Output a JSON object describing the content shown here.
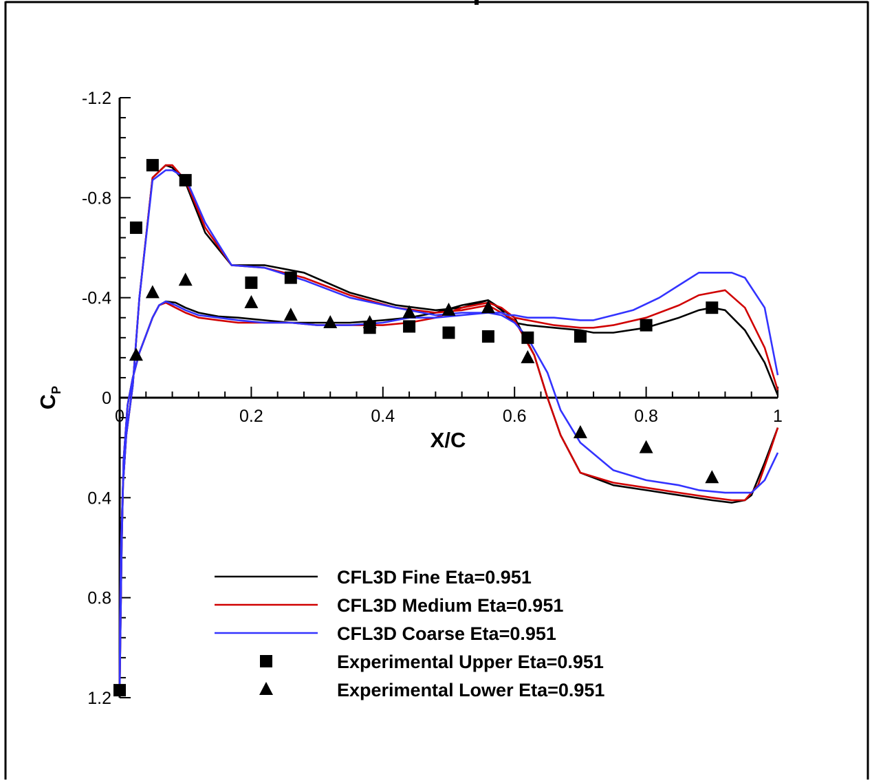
{
  "chart_data": {
    "type": "line",
    "xlabel": "X/C",
    "ylabel": "C",
    "ylabel_sub": "P",
    "xlim": [
      0,
      1
    ],
    "ylim_top": -1.2,
    "ylim_bottom": 1.2,
    "y_axis_inverted": true,
    "grid": false,
    "legend_position": "lower-center",
    "x_ticks": [
      {
        "value": 0,
        "label": "0"
      },
      {
        "value": 0.2,
        "label": "0.2"
      },
      {
        "value": 0.4,
        "label": "0.4"
      },
      {
        "value": 0.6,
        "label": "0.6"
      },
      {
        "value": 0.8,
        "label": "0.8"
      },
      {
        "value": 1,
        "label": "1"
      }
    ],
    "y_ticks": [
      {
        "value": -1.2,
        "label": "-1.2"
      },
      {
        "value": -0.8,
        "label": "-0.8"
      },
      {
        "value": -0.4,
        "label": "-0.4"
      },
      {
        "value": 0,
        "label": "0"
      },
      {
        "value": 0.4,
        "label": "0.4"
      },
      {
        "value": 0.8,
        "label": "0.8"
      },
      {
        "value": 1.2,
        "label": "1.2"
      }
    ],
    "series": [
      {
        "name": "CFL3D Fine Eta=0.951",
        "kind": "line",
        "color": "#000000",
        "x": [
          1.0,
          0.98,
          0.95,
          0.92,
          0.9,
          0.88,
          0.85,
          0.8,
          0.75,
          0.72,
          0.7,
          0.66,
          0.62,
          0.6,
          0.59,
          0.58,
          0.56,
          0.52,
          0.48,
          0.44,
          0.4,
          0.35,
          0.3,
          0.26,
          0.22,
          0.18,
          0.15,
          0.12,
          0.1,
          0.085,
          0.07,
          0.06,
          0.05,
          0.04,
          0.03,
          0.02,
          0.012,
          0.006,
          0.003,
          0.0,
          0.0005,
          0.002,
          0.005,
          0.01,
          0.02,
          0.03,
          0.05,
          0.07,
          0.08,
          0.1,
          0.13,
          0.17,
          0.22,
          0.28,
          0.35,
          0.42,
          0.48,
          0.52,
          0.56,
          0.6,
          0.63,
          0.65,
          0.67,
          0.7,
          0.75,
          0.8,
          0.85,
          0.9,
          0.93,
          0.95,
          0.96,
          0.98,
          1.0
        ],
        "y": [
          -0.01,
          -0.14,
          -0.27,
          -0.35,
          -0.36,
          -0.35,
          -0.32,
          -0.28,
          -0.26,
          -0.26,
          -0.27,
          -0.28,
          -0.29,
          -0.3,
          -0.32,
          -0.35,
          -0.39,
          -0.37,
          -0.34,
          -0.32,
          -0.31,
          -0.3,
          -0.3,
          -0.3,
          -0.31,
          -0.32,
          -0.325,
          -0.34,
          -0.36,
          -0.38,
          -0.385,
          -0.37,
          -0.32,
          -0.25,
          -0.18,
          -0.08,
          0.03,
          0.25,
          0.6,
          1.17,
          0.9,
          0.6,
          0.35,
          0.15,
          -0.05,
          -0.4,
          -0.88,
          -0.93,
          -0.92,
          -0.86,
          -0.66,
          -0.53,
          -0.53,
          -0.5,
          -0.42,
          -0.37,
          -0.35,
          -0.36,
          -0.39,
          -0.32,
          -0.17,
          0.0,
          0.15,
          0.3,
          0.35,
          0.37,
          0.39,
          0.41,
          0.42,
          0.41,
          0.39,
          0.26,
          0.12
        ]
      },
      {
        "name": "CFL3D Medium Eta=0.951",
        "kind": "line",
        "color": "#d00000",
        "x": [
          1.0,
          0.98,
          0.95,
          0.92,
          0.9,
          0.88,
          0.85,
          0.8,
          0.75,
          0.72,
          0.7,
          0.66,
          0.62,
          0.6,
          0.59,
          0.58,
          0.56,
          0.52,
          0.48,
          0.44,
          0.4,
          0.35,
          0.3,
          0.26,
          0.22,
          0.18,
          0.15,
          0.12,
          0.1,
          0.085,
          0.07,
          0.06,
          0.05,
          0.04,
          0.03,
          0.02,
          0.012,
          0.006,
          0.003,
          0.0,
          0.0005,
          0.002,
          0.005,
          0.01,
          0.02,
          0.03,
          0.05,
          0.07,
          0.08,
          0.1,
          0.13,
          0.17,
          0.22,
          0.28,
          0.35,
          0.42,
          0.48,
          0.52,
          0.56,
          0.6,
          0.63,
          0.65,
          0.67,
          0.7,
          0.75,
          0.8,
          0.85,
          0.9,
          0.93,
          0.95,
          0.97,
          0.99,
          1.0
        ],
        "y": [
          -0.03,
          -0.2,
          -0.36,
          -0.43,
          -0.42,
          -0.41,
          -0.37,
          -0.32,
          -0.29,
          -0.28,
          -0.28,
          -0.29,
          -0.31,
          -0.32,
          -0.34,
          -0.36,
          -0.38,
          -0.36,
          -0.32,
          -0.3,
          -0.29,
          -0.29,
          -0.29,
          -0.3,
          -0.3,
          -0.3,
          -0.31,
          -0.32,
          -0.34,
          -0.36,
          -0.38,
          -0.37,
          -0.32,
          -0.25,
          -0.18,
          -0.08,
          0.03,
          0.25,
          0.6,
          1.17,
          0.9,
          0.6,
          0.35,
          0.15,
          -0.05,
          -0.4,
          -0.88,
          -0.93,
          -0.93,
          -0.87,
          -0.68,
          -0.53,
          -0.52,
          -0.48,
          -0.41,
          -0.36,
          -0.34,
          -0.35,
          -0.37,
          -0.31,
          -0.17,
          0.0,
          0.15,
          0.3,
          0.34,
          0.36,
          0.38,
          0.4,
          0.41,
          0.41,
          0.35,
          0.2,
          0.12
        ]
      },
      {
        "name": "CFL3D Coarse Eta=0.951",
        "kind": "line",
        "color": "#3333ff",
        "x": [
          1.0,
          0.98,
          0.95,
          0.93,
          0.91,
          0.88,
          0.85,
          0.82,
          0.78,
          0.75,
          0.72,
          0.7,
          0.66,
          0.62,
          0.6,
          0.59,
          0.58,
          0.56,
          0.52,
          0.48,
          0.44,
          0.4,
          0.35,
          0.3,
          0.26,
          0.22,
          0.18,
          0.15,
          0.12,
          0.1,
          0.085,
          0.07,
          0.06,
          0.05,
          0.04,
          0.03,
          0.02,
          0.012,
          0.006,
          0.003,
          0.0,
          0.0005,
          0.002,
          0.005,
          0.01,
          0.02,
          0.03,
          0.05,
          0.07,
          0.08,
          0.1,
          0.13,
          0.17,
          0.22,
          0.28,
          0.35,
          0.42,
          0.48,
          0.52,
          0.56,
          0.58,
          0.6,
          0.62,
          0.65,
          0.67,
          0.7,
          0.75,
          0.8,
          0.85,
          0.88,
          0.92,
          0.96,
          0.98,
          1.0
        ],
        "y": [
          -0.09,
          -0.36,
          -0.48,
          -0.5,
          -0.5,
          -0.5,
          -0.45,
          -0.4,
          -0.35,
          -0.33,
          -0.31,
          -0.31,
          -0.32,
          -0.32,
          -0.33,
          -0.33,
          -0.34,
          -0.34,
          -0.33,
          -0.32,
          -0.32,
          -0.3,
          -0.29,
          -0.29,
          -0.3,
          -0.3,
          -0.31,
          -0.32,
          -0.33,
          -0.35,
          -0.37,
          -0.385,
          -0.37,
          -0.32,
          -0.25,
          -0.18,
          -0.08,
          0.03,
          0.25,
          0.6,
          1.17,
          0.9,
          0.6,
          0.35,
          0.15,
          -0.05,
          -0.4,
          -0.87,
          -0.91,
          -0.91,
          -0.88,
          -0.7,
          -0.53,
          -0.52,
          -0.47,
          -0.4,
          -0.36,
          -0.33,
          -0.34,
          -0.34,
          -0.33,
          -0.3,
          -0.24,
          -0.1,
          0.05,
          0.18,
          0.29,
          0.33,
          0.35,
          0.37,
          0.38,
          0.38,
          0.33,
          0.22
        ]
      },
      {
        "name": "Experimental Upper Eta=0.951",
        "kind": "marker",
        "marker": "square",
        "color": "#000000",
        "x": [
          0.0,
          0.025,
          0.05,
          0.1,
          0.2,
          0.26,
          0.38,
          0.44,
          0.5,
          0.56,
          0.62,
          0.7,
          0.8,
          0.9
        ],
        "y": [
          1.17,
          -0.68,
          -0.93,
          -0.87,
          -0.46,
          -0.48,
          -0.28,
          -0.285,
          -0.26,
          -0.245,
          -0.24,
          -0.245,
          -0.29,
          -0.36
        ]
      },
      {
        "name": "Experimental Lower Eta=0.951",
        "kind": "marker",
        "marker": "triangle",
        "color": "#000000",
        "x": [
          0.025,
          0.05,
          0.1,
          0.2,
          0.26,
          0.32,
          0.38,
          0.44,
          0.5,
          0.56,
          0.62,
          0.7,
          0.8,
          0.9
        ],
        "y": [
          -0.17,
          -0.42,
          -0.47,
          -0.38,
          -0.33,
          -0.3,
          -0.3,
          -0.34,
          -0.35,
          -0.36,
          -0.16,
          0.14,
          0.2,
          0.32
        ]
      }
    ]
  }
}
